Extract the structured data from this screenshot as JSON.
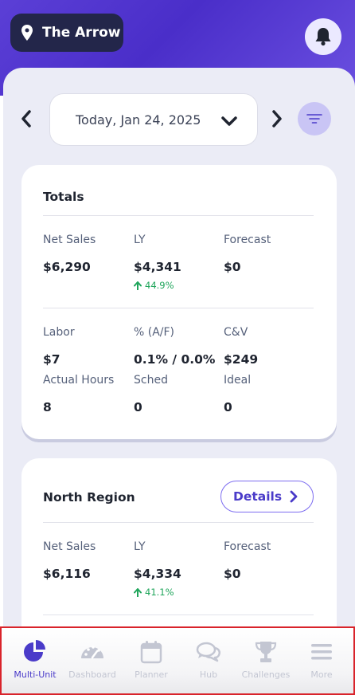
{
  "header": {
    "store_name": "The Arrow"
  },
  "date_nav": {
    "date_label": "Today, Jan 24, 2025"
  },
  "totals": {
    "title": "Totals",
    "row1": [
      {
        "label": "Net Sales",
        "value": "$6,290"
      },
      {
        "label": "LY",
        "value": "$4,341",
        "delta": "44.9%"
      },
      {
        "label": "Forecast",
        "value": "$0"
      }
    ],
    "row2": [
      {
        "label": "Labor",
        "value": "$7"
      },
      {
        "label": "% (A/F)",
        "value": "0.1% / 0.0%"
      },
      {
        "label": "C&V",
        "value": "$249"
      }
    ],
    "row3": [
      {
        "label": "Actual Hours",
        "value": "8"
      },
      {
        "label": "Sched",
        "value": "0"
      },
      {
        "label": "Ideal",
        "value": "0"
      }
    ]
  },
  "region": {
    "title": "North Region",
    "details_label": "Details",
    "row1": [
      {
        "label": "Net Sales",
        "value": "$6,116"
      },
      {
        "label": "LY",
        "value": "$4,334",
        "delta": "41.1%"
      },
      {
        "label": "Forecast",
        "value": "$0"
      }
    ]
  },
  "tabbar": {
    "active_color": "#4a3bc9",
    "inactive_color": "#c3c6d2",
    "tabs": [
      {
        "label": "Multi-Unit",
        "icon": "pie-chart-icon"
      },
      {
        "label": "Dashboard",
        "icon": "gauge-icon"
      },
      {
        "label": "Planner",
        "icon": "calendar-icon"
      },
      {
        "label": "Hub",
        "icon": "chat-bubbles-icon"
      },
      {
        "label": "Challenges",
        "icon": "trophy-icon"
      },
      {
        "label": "More",
        "icon": "menu-icon"
      }
    ]
  }
}
